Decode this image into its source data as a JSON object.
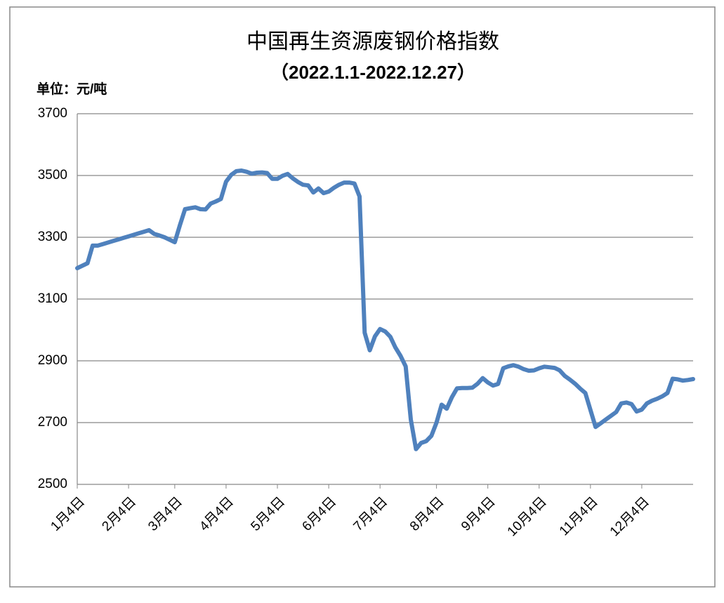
{
  "chart_data": {
    "type": "line",
    "title": "中国再生资源废钢价格指数",
    "subtitle": "（2022.1.1-2022.12.27）",
    "y_label": "单位：元/吨",
    "color": "#4f81bd",
    "grid": true,
    "ylim": [
      2500,
      3700
    ],
    "yticks": [
      2500,
      2700,
      2900,
      3100,
      3300,
      3500,
      3700
    ],
    "categories": [
      "1月4日",
      null,
      null,
      null,
      null,
      null,
      null,
      null,
      null,
      null,
      "2月4日",
      null,
      null,
      null,
      null,
      null,
      null,
      null,
      null,
      "3月4日",
      null,
      null,
      null,
      null,
      null,
      null,
      null,
      null,
      null,
      "4月4日",
      null,
      null,
      null,
      null,
      null,
      null,
      null,
      null,
      null,
      "5月4日",
      null,
      null,
      null,
      null,
      null,
      null,
      null,
      null,
      null,
      "6月4日",
      null,
      null,
      null,
      null,
      null,
      null,
      null,
      null,
      null,
      "7月4日",
      null,
      null,
      null,
      null,
      null,
      null,
      null,
      null,
      null,
      null,
      "8月4日",
      null,
      null,
      null,
      null,
      null,
      null,
      null,
      null,
      null,
      "9月4日",
      null,
      null,
      null,
      null,
      null,
      null,
      null,
      null,
      null,
      "10月4日",
      null,
      null,
      null,
      null,
      null,
      null,
      null,
      null,
      null,
      "11月4日",
      null,
      null,
      null,
      null,
      null,
      null,
      null,
      null,
      null,
      "12月4日",
      null,
      null,
      null,
      null,
      null,
      null,
      null,
      null,
      null,
      null
    ],
    "values": [
      3200,
      3208,
      3216,
      3273,
      3273,
      3278,
      3283,
      3288,
      3293,
      3298,
      3303,
      3308,
      3313,
      3318,
      3323,
      3311,
      3306,
      3300,
      3292,
      3284,
      3339,
      3391,
      3394,
      3397,
      3391,
      3390,
      3409,
      3416,
      3424,
      3480,
      3502,
      3514,
      3516,
      3512,
      3506,
      3509,
      3510,
      3508,
      3489,
      3489,
      3499,
      3505,
      3491,
      3479,
      3470,
      3468,
      3445,
      3458,
      3443,
      3448,
      3460,
      3470,
      3477,
      3477,
      3474,
      3432,
      2991,
      2934,
      2979,
      3003,
      2995,
      2978,
      2943,
      2916,
      2882,
      2710,
      2614,
      2634,
      2640,
      2657,
      2700,
      2758,
      2745,
      2782,
      2811,
      2812,
      2812,
      2813,
      2826,
      2844,
      2830,
      2820,
      2825,
      2876,
      2882,
      2886,
      2881,
      2873,
      2868,
      2869,
      2876,
      2881,
      2879,
      2877,
      2869,
      2851,
      2839,
      2826,
      2810,
      2796,
      2741,
      2686,
      2698,
      2710,
      2722,
      2734,
      2762,
      2765,
      2760,
      2736,
      2742,
      2762,
      2771,
      2777,
      2785,
      2796,
      2842,
      2840,
      2836,
      2838,
      2841
    ]
  }
}
